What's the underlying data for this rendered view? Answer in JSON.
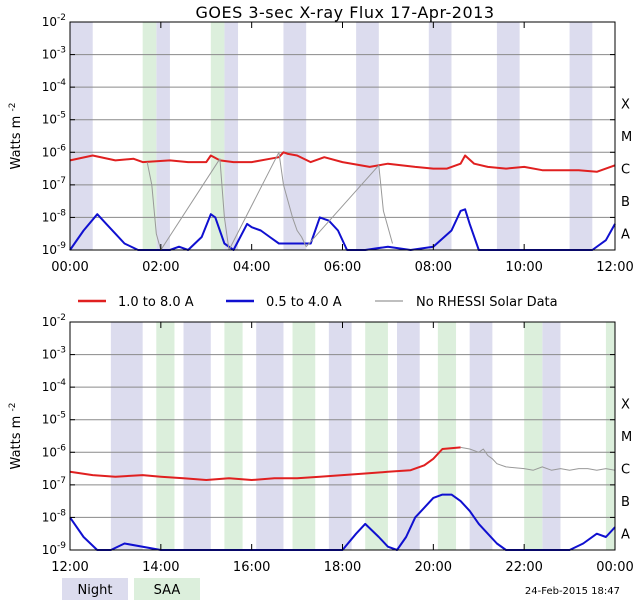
{
  "title": "GOES 3-sec X-ray Flux   17-Apr-2013",
  "ylabel": "Watts m",
  "ylabel_sup": "-2",
  "footer_date": "24-Feb-2015 18:47",
  "legend": {
    "items": [
      {
        "label": "1.0 to 8.0 A",
        "color": "#e02020"
      },
      {
        "label": "0.5 to 4.0 A",
        "color": "#1010d0"
      },
      {
        "label": "No RHESSI Solar Data",
        "color": "#999999"
      }
    ],
    "night_label": "Night",
    "saa_label": "SAA",
    "night_color": "#dcdcee",
    "saa_color": "#dcefdc"
  },
  "chart_data": [
    {
      "type": "line",
      "x_unit": "hours (UT)",
      "xlim": [
        0,
        12
      ],
      "ylim_exp": [
        -9,
        -2
      ],
      "y_scale": "log",
      "grid": true,
      "xticks": [
        "00:00",
        "02:00",
        "04:00",
        "06:00",
        "08:00",
        "10:00",
        "12:00"
      ],
      "yticks_exp": [
        "-9",
        "-8",
        "-7",
        "-6",
        "-5",
        "-4",
        "-3",
        "-2"
      ],
      "class_labels": [
        "A",
        "B",
        "C",
        "M",
        "X"
      ],
      "night": [
        [
          0.0,
          0.5
        ],
        [
          1.9,
          2.2
        ],
        [
          3.4,
          3.7
        ],
        [
          4.7,
          5.2
        ],
        [
          6.3,
          6.8
        ],
        [
          7.9,
          8.4
        ],
        [
          9.4,
          9.9
        ],
        [
          11.0,
          11.5
        ]
      ],
      "saa": [
        [
          1.6,
          1.9
        ],
        [
          3.1,
          3.4
        ]
      ],
      "series": [
        {
          "name": "1.0 to 8.0 A",
          "color": "#e02020",
          "x": [
            0.0,
            0.5,
            1.0,
            1.4,
            1.6,
            2.2,
            2.6,
            3.0,
            3.1,
            3.3,
            3.6,
            4.0,
            4.4,
            4.6,
            4.7,
            4.8,
            5.0,
            5.3,
            5.6,
            6.0,
            6.6,
            7.0,
            7.6,
            8.0,
            8.3,
            8.6,
            8.7,
            8.9,
            9.2,
            9.6,
            10.0,
            10.4,
            10.8,
            11.2,
            11.6,
            11.8,
            12.0
          ],
          "logy": [
            -6.25,
            -6.1,
            -6.25,
            -6.2,
            -6.3,
            -6.25,
            -6.3,
            -6.3,
            -6.1,
            -6.25,
            -6.3,
            -6.3,
            -6.2,
            -6.15,
            -6.0,
            -6.05,
            -6.1,
            -6.3,
            -6.15,
            -6.3,
            -6.45,
            -6.35,
            -6.45,
            -6.5,
            -6.5,
            -6.35,
            -6.1,
            -6.35,
            -6.45,
            -6.5,
            -6.45,
            -6.55,
            -6.55,
            -6.55,
            -6.6,
            -6.5,
            -6.4
          ]
        },
        {
          "name": "0.5 to 4.0 A",
          "color": "#1010d0",
          "x": [
            0.0,
            0.3,
            0.6,
            0.8,
            1.0,
            1.2,
            1.5,
            2.2,
            2.4,
            2.6,
            2.9,
            3.1,
            3.2,
            3.4,
            3.6,
            3.9,
            4.0,
            4.2,
            4.4,
            4.6,
            5.3,
            5.5,
            5.7,
            5.9,
            6.1,
            6.5,
            7.0,
            7.5,
            8.0,
            8.4,
            8.6,
            8.7,
            8.8,
            9.0,
            9.5,
            10.0,
            10.5,
            11.0,
            11.5,
            11.8,
            12.0
          ],
          "logy": [
            -9.0,
            -8.4,
            -7.9,
            -8.2,
            -8.5,
            -8.8,
            -9.0,
            -9.0,
            -8.9,
            -9.0,
            -8.6,
            -7.9,
            -8.0,
            -8.8,
            -9.0,
            -8.2,
            -8.3,
            -8.4,
            -8.6,
            -8.8,
            -8.8,
            -8.0,
            -8.1,
            -8.4,
            -9.0,
            -9.0,
            -8.9,
            -9.0,
            -8.9,
            -8.4,
            -7.8,
            -7.75,
            -8.2,
            -9.0,
            -9.0,
            -9.0,
            -9.0,
            -9.0,
            -9.0,
            -8.7,
            -8.2
          ]
        },
        {
          "name": "No RHESSI Solar Data",
          "color": "#999999",
          "x": [
            1.7,
            1.8,
            1.9,
            2.0,
            3.3,
            3.4,
            3.5,
            4.6,
            4.7,
            4.8,
            4.9,
            5.0,
            5.1,
            5.2,
            6.8,
            6.9,
            7.1
          ],
          "logy": [
            -6.3,
            -7.0,
            -8.5,
            -9.0,
            -6.2,
            -8.0,
            -9.0,
            -6.0,
            -7.0,
            -7.5,
            -8.0,
            -8.4,
            -8.6,
            -8.9,
            -6.4,
            -7.8,
            -8.8
          ]
        }
      ]
    },
    {
      "type": "line",
      "x_unit": "hours (UT)",
      "xlim": [
        12,
        24
      ],
      "ylim_exp": [
        -9,
        -2
      ],
      "y_scale": "log",
      "grid": true,
      "xticks": [
        "12:00",
        "14:00",
        "16:00",
        "18:00",
        "20:00",
        "22:00",
        "00:00"
      ],
      "yticks_exp": [
        "-9",
        "-8",
        "-7",
        "-6",
        "-5",
        "-4",
        "-3",
        "-2"
      ],
      "class_labels": [
        "A",
        "B",
        "C",
        "M",
        "X"
      ],
      "night": [
        [
          12.9,
          13.6
        ],
        [
          14.5,
          15.1
        ],
        [
          16.1,
          16.7
        ],
        [
          17.7,
          18.2
        ],
        [
          19.2,
          19.7
        ],
        [
          20.8,
          21.3
        ],
        [
          22.4,
          22.8
        ]
      ],
      "saa": [
        [
          13.9,
          14.3
        ],
        [
          15.4,
          15.8
        ],
        [
          16.9,
          17.4
        ],
        [
          18.5,
          19.0
        ],
        [
          20.1,
          20.5
        ],
        [
          22.0,
          22.4
        ],
        [
          23.8,
          24.0
        ]
      ],
      "series": [
        {
          "name": "1.0 to 8.0 A",
          "color": "#e02020",
          "x": [
            12.0,
            12.5,
            13.0,
            13.6,
            14.0,
            14.5,
            15.0,
            15.5,
            16.0,
            16.5,
            17.0,
            17.5,
            18.0,
            18.5,
            19.0,
            19.5,
            19.8,
            20.0,
            20.2,
            20.6
          ],
          "logy": [
            -6.6,
            -6.7,
            -6.75,
            -6.7,
            -6.75,
            -6.8,
            -6.85,
            -6.8,
            -6.85,
            -6.8,
            -6.8,
            -6.75,
            -6.7,
            -6.65,
            -6.6,
            -6.55,
            -6.4,
            -6.2,
            -5.9,
            -5.85
          ]
        },
        {
          "name": "0.5 to 4.0 A",
          "color": "#1010d0",
          "x": [
            12.0,
            12.3,
            12.6,
            12.9,
            13.2,
            14.0,
            15.0,
            16.0,
            17.0,
            18.0,
            18.3,
            18.5,
            18.8,
            19.0,
            19.2,
            19.4,
            19.6,
            19.8,
            19.9,
            20.0,
            20.2,
            20.4,
            20.6,
            20.8,
            21.0,
            21.2,
            21.4,
            21.6,
            21.9,
            22.2,
            22.6,
            23.0,
            23.3,
            23.6,
            23.8,
            24.0
          ],
          "logy": [
            -8.0,
            -8.6,
            -9.0,
            -9.0,
            -8.8,
            -9.0,
            -9.0,
            -9.0,
            -9.0,
            -9.0,
            -8.5,
            -8.2,
            -8.6,
            -8.9,
            -9.0,
            -8.6,
            -8.0,
            -7.7,
            -7.55,
            -7.4,
            -7.3,
            -7.3,
            -7.5,
            -7.8,
            -8.2,
            -8.5,
            -8.8,
            -9.0,
            -9.0,
            -9.0,
            -9.0,
            -9.0,
            -8.8,
            -8.5,
            -8.6,
            -8.3
          ]
        },
        {
          "name": "No RHESSI Solar Data",
          "color": "#999999",
          "x": [
            20.6,
            20.8,
            21.0,
            21.1,
            21.2,
            21.3,
            21.4,
            21.6,
            22.0,
            22.2,
            22.4,
            22.6,
            22.8,
            23.0,
            23.2,
            23.4,
            23.6,
            23.8,
            24.0
          ],
          "logy": [
            -5.85,
            -5.9,
            -6.0,
            -5.9,
            -6.1,
            -6.2,
            -6.35,
            -6.45,
            -6.5,
            -6.55,
            -6.45,
            -6.55,
            -6.5,
            -6.55,
            -6.5,
            -6.5,
            -6.55,
            -6.5,
            -6.55
          ]
        }
      ]
    }
  ]
}
